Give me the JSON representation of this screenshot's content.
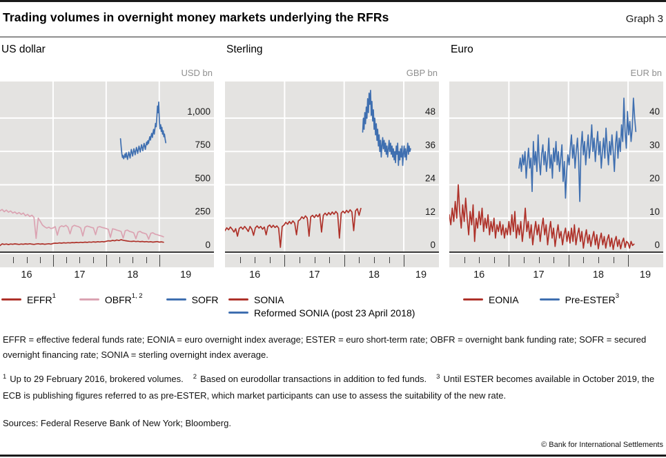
{
  "header": {
    "title": "Trading volumes in overnight money markets underlying the RFRs",
    "graph_label": "Graph 3"
  },
  "chart_data": [
    {
      "type": "line",
      "title": "US dollar",
      "unit": "USD bn",
      "xlim": [
        2016.0,
        2020.03
      ],
      "ylim": [
        0,
        1274
      ],
      "yticks": [
        0,
        250,
        500,
        750,
        1000
      ],
      "ytick_labels": [
        "0",
        "250",
        "500",
        "750",
        "1,000"
      ],
      "year_gridlines": [
        2017,
        2018,
        2019
      ],
      "year_labels": [
        "16",
        "17",
        "18",
        "19"
      ],
      "legend_layout": "row",
      "grid": true,
      "series": [
        {
          "name": "EFFR",
          "sup": "1",
          "color": "#ae3129",
          "t0": 2016.0,
          "dt": 0.04,
          "values": [
            44,
            57,
            53,
            56,
            52,
            56,
            54,
            57,
            55,
            53,
            56,
            54,
            57,
            55,
            58,
            55,
            53,
            56,
            58,
            55,
            57,
            54,
            56,
            58,
            55,
            60,
            62,
            61,
            64,
            62,
            65,
            63,
            66,
            64,
            67,
            65,
            68,
            66,
            69,
            67,
            70,
            68,
            71,
            69,
            72,
            70,
            73,
            71,
            74,
            72,
            76,
            80,
            78,
            83,
            80,
            86,
            82,
            88,
            84,
            81,
            78,
            76,
            75,
            77,
            74,
            76,
            73,
            75,
            72,
            74,
            71,
            73,
            70,
            72,
            74,
            70,
            72,
            69
          ]
        },
        {
          "name": "OBFR",
          "sup": "1, 2",
          "color": "#dba3b2",
          "t0": 2016.0,
          "dt": 0.04,
          "values": [
            305,
            315,
            298,
            310,
            294,
            304,
            288,
            296,
            282,
            292,
            278,
            288,
            268,
            278,
            262,
            272,
            256,
            98,
            250,
            225,
            198,
            185,
            175,
            182,
            172,
            176,
            186,
            122,
            182,
            192,
            186,
            196,
            182,
            132,
            186,
            196,
            190,
            186,
            176,
            116,
            182,
            190,
            186,
            180,
            176,
            126,
            182,
            186,
            180,
            176,
            172,
            166,
            106,
            170,
            166,
            160,
            156,
            150,
            100,
            156,
            160,
            150,
            146,
            140,
            96,
            146,
            150,
            140,
            136,
            130,
            92,
            136,
            140,
            130,
            126,
            120,
            116,
            110
          ]
        },
        {
          "name": "SOFR",
          "sup": "",
          "color": "#3f6fb0",
          "t0": 2018.27,
          "dt": 0.012,
          "values": [
            845,
            790,
            735,
            705,
            720,
            695,
            710,
            730,
            705,
            740,
            715,
            690,
            720,
            745,
            725,
            700,
            735,
            765,
            740,
            715,
            745,
            770,
            750,
            725,
            755,
            780,
            760,
            735,
            765,
            790,
            770,
            745,
            775,
            800,
            780,
            755,
            785,
            810,
            790,
            765,
            795,
            820,
            800,
            830,
            810,
            840,
            860,
            835,
            865,
            885,
            855,
            890,
            915,
            880,
            920,
            960,
            935,
            1000,
            1090,
            1040,
            1120,
            980,
            920,
            950,
            900,
            930,
            880,
            905,
            860,
            880,
            845,
            815
          ]
        }
      ]
    },
    {
      "type": "line",
      "title": "Sterling",
      "unit": "GBP bn",
      "xlim": [
        2016.0,
        2019.59
      ],
      "ylim": [
        0,
        61.2
      ],
      "yticks": [
        0,
        12,
        24,
        36,
        48
      ],
      "ytick_labels": [
        "0",
        "12",
        "24",
        "36",
        "48"
      ],
      "year_gridlines": [
        2017,
        2018,
        2019
      ],
      "year_labels": [
        "16",
        "17",
        "18",
        "19"
      ],
      "legend_layout": "column",
      "grid": true,
      "series": [
        {
          "name": "SONIA",
          "sup": "",
          "color": "#ae3129",
          "t0": 2016.0,
          "dt": 0.03,
          "values": [
            7.5,
            8.5,
            7.8,
            8.8,
            8.0,
            7.0,
            8.2,
            5.5,
            8.3,
            8.8,
            8.0,
            9.0,
            8.2,
            7.2,
            9.0,
            8.0,
            5.8,
            8.5,
            9.2,
            8.4,
            9.0,
            8.0,
            8.8,
            6.0,
            9.0,
            9.5,
            8.6,
            9.4,
            8.6,
            9.2,
            8.4,
            1.5,
            9.0,
            9.5,
            10.5,
            9.8,
            10.8,
            10.0,
            11.0,
            10.2,
            6.0,
            11.0,
            11.5,
            12.5,
            11.8,
            12.8,
            12.0,
            5.5,
            12.5,
            13.0,
            12.2,
            13.2,
            12.5,
            13.5,
            7.0,
            13.0,
            13.8,
            13.0,
            14.0,
            13.2,
            14.2,
            13.4,
            14.4,
            13.6,
            4.8,
            13.8,
            14.5,
            13.8,
            14.8,
            14.0,
            15.0,
            14.2,
            7.5,
            14.6,
            15.4,
            13.0,
            15.5
          ]
        },
        {
          "name": "Reformed SONIA (post 23 April 2018)",
          "sup": "",
          "color": "#3f6fb0",
          "t0": 2018.31,
          "dt": 0.012,
          "values": [
            43,
            48,
            44,
            50,
            46,
            52,
            48,
            55,
            50,
            57,
            53,
            58,
            49,
            54,
            47,
            51,
            44,
            48,
            42,
            46,
            40,
            44,
            38,
            42,
            36,
            40,
            34,
            38,
            41,
            37,
            40,
            36,
            39,
            35,
            38,
            34,
            37,
            40,
            36,
            39,
            35,
            38,
            34,
            37,
            33,
            36,
            32,
            38,
            35,
            39,
            31,
            36,
            33,
            37,
            34,
            38,
            31,
            35,
            38,
            34,
            37,
            33,
            36,
            39,
            35,
            38,
            36,
            37
          ]
        }
      ]
    },
    {
      "type": "line",
      "title": "Euro",
      "unit": "EUR bn",
      "xlim": [
        2016.0,
        2019.59
      ],
      "ylim": [
        0,
        51
      ],
      "yticks": [
        0,
        10,
        20,
        30,
        40
      ],
      "ytick_labels": [
        "0",
        "10",
        "20",
        "30",
        "40"
      ],
      "year_gridlines": [
        2017,
        2018,
        2019
      ],
      "year_labels": [
        "16",
        "17",
        "18",
        "19"
      ],
      "legend_layout": "row3",
      "grid": true,
      "series": [
        {
          "name": "EONIA",
          "sup": "",
          "color": "#ae3129",
          "t0": 2016.0,
          "dt": 0.025,
          "values": [
            11,
            8,
            13,
            9,
            15,
            10,
            20,
            12,
            7,
            14,
            9,
            16,
            10,
            5,
            12,
            8,
            14,
            3,
            10,
            7,
            12,
            8,
            13,
            6,
            10,
            7,
            11,
            5,
            9,
            6,
            10,
            4,
            8,
            6,
            9,
            5,
            8,
            4,
            7,
            5,
            9,
            5,
            11,
            6,
            12,
            4,
            8,
            5,
            9,
            3,
            7,
            13,
            6,
            9,
            4,
            8,
            2,
            6,
            9,
            5,
            8,
            3,
            7,
            10,
            5,
            8,
            2,
            6,
            9,
            4,
            7,
            1.5,
            5,
            8,
            4,
            6,
            2,
            5,
            7,
            3,
            6,
            2.5,
            7,
            3,
            8,
            2,
            5,
            7,
            3,
            6,
            1,
            4,
            6.5,
            2.5,
            5,
            1.5,
            4,
            6,
            2,
            5,
            0.8,
            3.5,
            5.5,
            2,
            4.5,
            1,
            3.5,
            5,
            1.5,
            4,
            0.6,
            3,
            4.5,
            1.5,
            3.5,
            0.8,
            2.8,
            4,
            1.2,
            3,
            2.5,
            1,
            3,
            1.8,
            2.2
          ]
        },
        {
          "name": "Pre-ESTER",
          "sup": "3",
          "color": "#3f6fb0",
          "t0": 2017.17,
          "dt": 0.02,
          "values": [
            25,
            28,
            24,
            29,
            26,
            30,
            22,
            27,
            31,
            25,
            28,
            18,
            33,
            26,
            30,
            24,
            35,
            27,
            23,
            29,
            32,
            26,
            30,
            24,
            28,
            34,
            25,
            29,
            22,
            31,
            27,
            33,
            26,
            30,
            24,
            28,
            32,
            21,
            27,
            16,
            24,
            29,
            26,
            31,
            35,
            28,
            32,
            25,
            30,
            34,
            27,
            15,
            31,
            36,
            29,
            33,
            26,
            31,
            35,
            28,
            32,
            38,
            30,
            34,
            27,
            32,
            36,
            29,
            33,
            25,
            30,
            34,
            28,
            37,
            31,
            26,
            33,
            29,
            35,
            30,
            24,
            32,
            36,
            28,
            34,
            30,
            38,
            33,
            46,
            36,
            31,
            42,
            35,
            39,
            33,
            37,
            46,
            40,
            36
          ]
        }
      ]
    }
  ],
  "footnotes": {
    "definitions": "EFFR = effective federal funds rate; EONIA = euro overnight index average; ESTER = euro short-term rate; OBFR = overnight bank funding rate; SOFR = secured overnight financing rate; SONIA = sterling overnight index average.",
    "notes": [
      {
        "sup": "1",
        "text": "Up to 29 February 2016, brokered volumes."
      },
      {
        "sup": "2",
        "text": "Based on eurodollar transactions in addition to fed funds."
      },
      {
        "sup": "3",
        "text": "Until ESTER becomes available in October 2019, the ECB is publishing figures referred to as pre-ESTER, which market participants can use to assess the suitability of the new rate."
      }
    ],
    "sources": "Sources: Federal Reserve Bank of New York; Bloomberg.",
    "copyright": "© Bank for International Settlements"
  }
}
